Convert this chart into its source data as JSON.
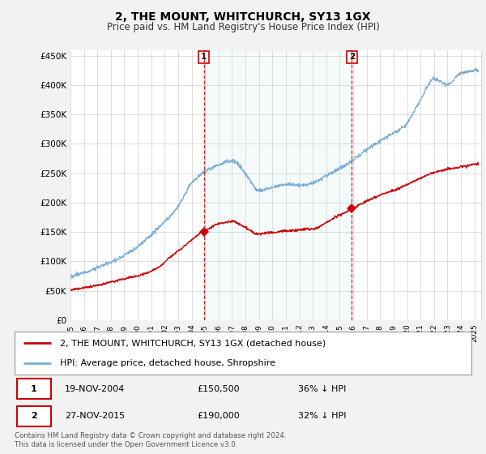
{
  "title": "2, THE MOUNT, WHITCHURCH, SY13 1GX",
  "subtitle": "Price paid vs. HM Land Registry's House Price Index (HPI)",
  "ylim": [
    0,
    460000
  ],
  "yticks": [
    0,
    50000,
    100000,
    150000,
    200000,
    250000,
    300000,
    350000,
    400000,
    450000
  ],
  "ytick_labels": [
    "£0",
    "£50K",
    "£100K",
    "£150K",
    "£200K",
    "£250K",
    "£300K",
    "£350K",
    "£400K",
    "£450K"
  ],
  "sale1_date_num": 2004.9,
  "sale1_price": 150500,
  "sale1_label": "19-NOV-2004",
  "sale1_amount": "£150,500",
  "sale1_pct": "36% ↓ HPI",
  "sale2_date_num": 2015.9,
  "sale2_price": 190000,
  "sale2_label": "27-NOV-2015",
  "sale2_amount": "£190,000",
  "sale2_pct": "32% ↓ HPI",
  "line1_label": "2, THE MOUNT, WHITCHURCH, SY13 1GX (detached house)",
  "line2_label": "HPI: Average price, detached house, Shropshire",
  "red_color": "#cc0000",
  "blue_color": "#7aaed4",
  "footer": "Contains HM Land Registry data © Crown copyright and database right 2024.\nThis data is licensed under the Open Government Licence v3.0.",
  "bg_color": "#f2f2f2",
  "plot_bg": "#ffffff",
  "xmin": 1995,
  "xmax": 2025.5
}
